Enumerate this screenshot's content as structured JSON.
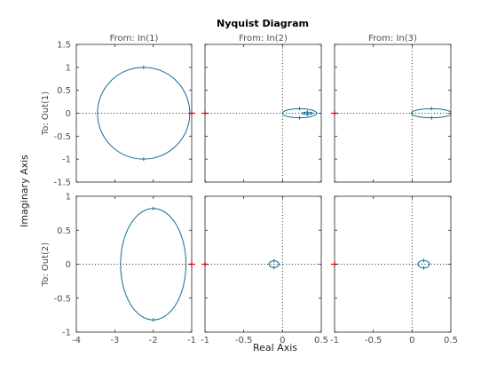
{
  "title": "Nyquist Diagram",
  "xlabel": "Real Axis",
  "ylabel": "Imaginary Axis",
  "colors": {
    "curve": "#0f6e96",
    "critical": "#e8000b",
    "axes_frame": "#262626",
    "crosshair": "#262626"
  },
  "columns": [
    "From: In(1)",
    "From: In(2)",
    "From: In(3)"
  ],
  "rows": [
    "To: Out(1)",
    "To: Out(2)"
  ],
  "chart_data": {
    "type": "line",
    "grid": false,
    "critical_point": [
      -1,
      0
    ],
    "column_xlim": [
      [
        -4,
        -1
      ],
      [
        -1,
        0.5
      ],
      [
        -1,
        0.5
      ]
    ],
    "column_xticks": [
      [
        -4,
        -3,
        -2,
        -1
      ],
      [
        -1,
        -0.5,
        0,
        0.5
      ],
      [
        -1,
        -0.5,
        0,
        0.5
      ]
    ],
    "column_xtick_labels": [
      [
        "-4",
        "-3",
        "-2",
        "-1"
      ],
      [
        "-1",
        "-0.5",
        "0",
        "0.5"
      ],
      [
        "-1",
        "-0.5",
        "0",
        "0.5"
      ]
    ],
    "row_ylim": [
      [
        -1.5,
        1.5
      ],
      [
        -1,
        1
      ]
    ],
    "row_yticks": [
      [
        -1.5,
        -1,
        -0.5,
        0,
        0.5,
        1,
        1.5
      ],
      [
        -1,
        -0.5,
        0,
        0.5,
        1
      ]
    ],
    "row_ytick_labels": [
      [
        "-1.5",
        "-1",
        "-0.5",
        "0",
        "0.5",
        "1",
        "1.5"
      ],
      [
        "-1",
        "-0.5",
        "0",
        "0.5",
        "1"
      ]
    ],
    "curves": [
      {
        "row": 0,
        "col": 0,
        "center": [
          -2.25,
          0
        ],
        "radius": [
          1.2,
          1.0
        ]
      },
      {
        "row": 0,
        "col": 1,
        "center": [
          0.22,
          0
        ],
        "radius": [
          0.22,
          0.1
        ]
      },
      {
        "row": 0,
        "col": 1,
        "center": [
          0.32,
          0
        ],
        "radius": [
          0.07,
          0.025
        ]
      },
      {
        "row": 0,
        "col": 2,
        "center": [
          0.25,
          0
        ],
        "radius": [
          0.26,
          0.1
        ]
      },
      {
        "row": 1,
        "col": 0,
        "center": [
          -2.0,
          0
        ],
        "radius": [
          0.85,
          0.82
        ]
      },
      {
        "row": 1,
        "col": 1,
        "center": [
          -0.11,
          0
        ],
        "radius": [
          0.065,
          0.05
        ]
      },
      {
        "row": 1,
        "col": 2,
        "center": [
          0.15,
          0
        ],
        "radius": [
          0.075,
          0.055
        ]
      }
    ]
  }
}
